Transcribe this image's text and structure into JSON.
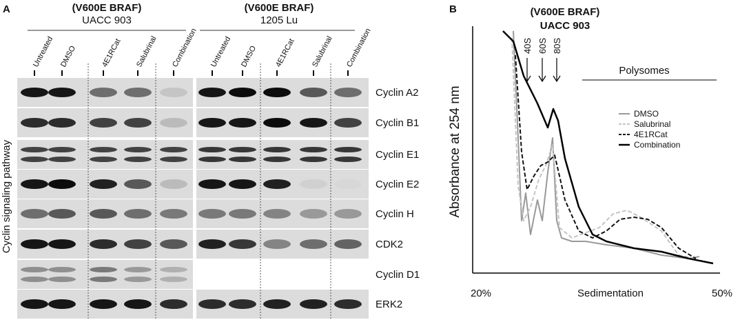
{
  "panel_a": {
    "label": "A",
    "groups": [
      {
        "title": "(V600E BRAF)",
        "subtitle": "UACC 903"
      },
      {
        "title": "(V600E BRAF)",
        "subtitle": "1205 Lu"
      }
    ],
    "lanes": [
      "Untreated",
      "DMSO",
      "4E1RCat",
      "Salubrinal",
      "Combination"
    ],
    "y_label": "Cyclin signaling pathway",
    "rows": [
      "Cyclin A2",
      "Cyclin B1",
      "Cyclin E1",
      "Cyclin E2",
      "Cyclin H",
      "CDK2",
      "Cyclin D1",
      "ERK2"
    ]
  },
  "panel_b": {
    "label": "B",
    "title": "(V600E BRAF)",
    "subtitle": "UACC 903",
    "y_label": "Absorbance at 254 nm",
    "x_label": "Sedimentation",
    "x_start": "20%",
    "x_end": "50%",
    "peaks": [
      "40S",
      "60S",
      "80S"
    ],
    "region": "Polysomes",
    "legend": [
      "DMSO",
      "Salubrinal",
      "4E1RCat",
      "Combination"
    ]
  }
}
